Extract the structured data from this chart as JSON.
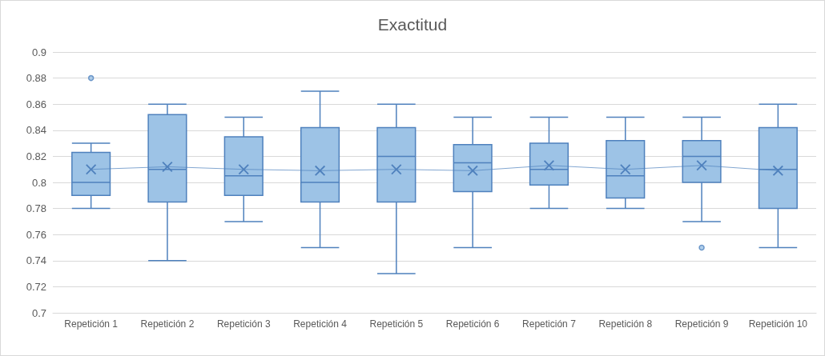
{
  "chart_data": {
    "type": "box",
    "title": "Exactitud",
    "categories": [
      "Repetición 1",
      "Repetición 2",
      "Repetición 3",
      "Repetición 4",
      "Repetición 5",
      "Repetición 6",
      "Repetición 7",
      "Repetición 8",
      "Repetición 9",
      "Repetición 10"
    ],
    "series": [
      {
        "color": "#9dc3e6",
        "boxes": [
          {
            "low": 0.78,
            "q1": 0.79,
            "median": 0.8,
            "q3": 0.823,
            "high": 0.83,
            "outliers": [
              0.88
            ]
          },
          {
            "low": 0.74,
            "q1": 0.785,
            "median": 0.81,
            "q3": 0.852,
            "high": 0.86
          },
          {
            "low": 0.77,
            "q1": 0.79,
            "median": 0.805,
            "q3": 0.835,
            "high": 0.85
          },
          {
            "low": 0.75,
            "q1": 0.785,
            "median": 0.8,
            "q3": 0.842,
            "high": 0.87
          },
          {
            "low": 0.73,
            "q1": 0.785,
            "median": 0.82,
            "q3": 0.842,
            "high": 0.86
          },
          {
            "low": 0.75,
            "q1": 0.793,
            "median": 0.815,
            "q3": 0.829,
            "high": 0.85
          },
          {
            "low": 0.78,
            "q1": 0.798,
            "median": 0.81,
            "q3": 0.83,
            "high": 0.85
          },
          {
            "low": 0.78,
            "q1": 0.788,
            "median": 0.805,
            "q3": 0.832,
            "high": 0.85
          },
          {
            "low": 0.77,
            "q1": 0.8,
            "median": 0.82,
            "q3": 0.832,
            "high": 0.85,
            "outliers": [
              0.75
            ]
          },
          {
            "low": 0.75,
            "q1": 0.78,
            "median": 0.81,
            "q3": 0.842,
            "high": 0.86
          }
        ]
      },
      {
        "type": "line",
        "color": "#4f81bd",
        "marker": "cross",
        "values": [
          0.81,
          0.812,
          0.81,
          0.809,
          0.81,
          0.809,
          0.813,
          0.81,
          0.813,
          0.809
        ]
      }
    ],
    "ylim": [
      0.7,
      0.9
    ],
    "yticks": [
      0.7,
      0.72,
      0.74,
      0.76,
      0.78,
      0.8,
      0.82,
      0.84,
      0.86,
      0.88,
      0.9
    ],
    "grid": "y"
  }
}
